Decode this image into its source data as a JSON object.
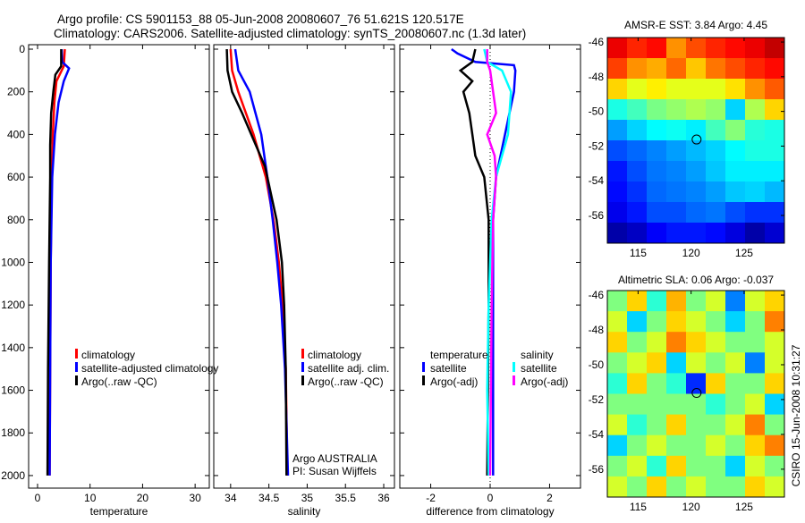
{
  "header": {
    "title_line1": "Argo profile: CS 5901153_88 05-Jun-2008 20080607_76 51.621S 120.517E",
    "title_line2": "Climatology: CARS2006. Satellite-adjusted climatology: synTS_20080607.nc (1.3d later)"
  },
  "side_label": "CSIRO 15-Jun-2008 10:31:27",
  "colors": {
    "climatology": "#ff0000",
    "satellite": "#0000ff",
    "argo": "#000000",
    "salinity_satellite": "#00ffff",
    "salinity_argo": "#ff00ff"
  },
  "chart_data": [
    {
      "type": "line",
      "id": "temperature",
      "xlabel": "temperature",
      "xlim": [
        -1.7,
        32.7
      ],
      "ylim": [
        2059,
        -21
      ],
      "xticks": [
        0,
        10,
        20,
        30
      ],
      "yticks": [
        0,
        200,
        400,
        600,
        800,
        1000,
        1200,
        1400,
        1600,
        1800,
        2000
      ],
      "legend": [
        "climatology",
        "satellite-adjusted climatology",
        "Argo(..raw -QC)"
      ],
      "series": [
        {
          "name": "climatology",
          "color": "#ff0000",
          "depth": [
            0,
            80,
            150,
            250,
            400,
            600,
            1000,
            1500,
            2000
          ],
          "values": [
            5.2,
            5.0,
            3.6,
            3.2,
            2.9,
            2.7,
            2.5,
            2.4,
            2.3
          ]
        },
        {
          "name": "satellite-adjusted climatology",
          "color": "#0000ff",
          "depth": [
            0,
            60,
            90,
            150,
            250,
            400,
            600,
            1000,
            1500,
            2000
          ],
          "values": [
            4.6,
            4.7,
            6.0,
            5.0,
            4.0,
            3.3,
            2.8,
            2.5,
            2.4,
            2.3
          ]
        },
        {
          "name": "Argo(..raw -QC)",
          "color": "#000000",
          "depth": [
            0,
            80,
            120,
            200,
            300,
            450,
            600,
            1000,
            1500,
            2000
          ],
          "values": [
            4.5,
            4.5,
            3.4,
            3.0,
            2.6,
            2.4,
            2.4,
            2.2,
            2.0,
            1.9
          ]
        }
      ]
    },
    {
      "type": "line",
      "id": "salinity",
      "xlabel": "salinity",
      "xlim": [
        33.78,
        36.14
      ],
      "ylim": [
        2059,
        -21
      ],
      "xticks": [
        34,
        34.5,
        35,
        35.5,
        36
      ],
      "legend": [
        "climatology",
        "satellite adj. clim.",
        "Argo(..raw -QC)"
      ],
      "annotations": [
        "Argo AUSTRALIA",
        "PI: Susan Wijffels"
      ],
      "series": [
        {
          "name": "climatology",
          "color": "#ff0000",
          "depth": [
            0,
            100,
            200,
            400,
            600,
            800,
            1000,
            1200,
            1500,
            2000
          ],
          "values": [
            34.0,
            34.02,
            34.1,
            34.3,
            34.46,
            34.56,
            34.63,
            34.68,
            34.72,
            34.74
          ]
        },
        {
          "name": "satellite adj. clim.",
          "color": "#0000ff",
          "depth": [
            0,
            100,
            200,
            400,
            600,
            800,
            1000,
            1200,
            1500,
            2000
          ],
          "values": [
            34.06,
            34.1,
            34.25,
            34.4,
            34.48,
            34.55,
            34.61,
            34.66,
            34.71,
            34.75
          ]
        },
        {
          "name": "Argo(..raw -QC)",
          "color": "#000000",
          "depth": [
            0,
            100,
            200,
            300,
            400,
            550,
            800,
            1000,
            1200,
            1500,
            2000
          ],
          "values": [
            33.95,
            33.96,
            34.02,
            34.15,
            34.27,
            34.45,
            34.6,
            34.67,
            34.7,
            34.72,
            34.73
          ]
        }
      ]
    },
    {
      "type": "line",
      "id": "difference",
      "xlabel": "difference from climatology",
      "xlim": [
        -3.04,
        3.04
      ],
      "ylim": [
        2059,
        -21
      ],
      "xticks": [
        -2,
        0,
        2
      ],
      "legend_headers": [
        "temperature",
        "salinity"
      ],
      "legend": [
        "satellite",
        "Argo(-adj)",
        "satellite",
        "Argo(-adj)"
      ],
      "series": [
        {
          "name": "temperature satellite",
          "color": "#0000ff",
          "depth": [
            0,
            20,
            60,
            75,
            100,
            200,
            400,
            600,
            800,
            1200,
            2000
          ],
          "values": [
            -1.3,
            -1.1,
            -0.5,
            0.8,
            0.85,
            0.8,
            0.5,
            0.2,
            0.1,
            0.1,
            0.1
          ]
        },
        {
          "name": "temperature Argo(-adj)",
          "color": "#000000",
          "depth": [
            0,
            60,
            100,
            150,
            200,
            300,
            400,
            500,
            600,
            800,
            1200,
            2000
          ],
          "values": [
            -0.5,
            -0.6,
            -1.0,
            -0.6,
            -0.9,
            -0.7,
            -0.6,
            -0.5,
            -0.2,
            -0.05,
            -0.05,
            -0.1
          ]
        },
        {
          "name": "salinity satellite",
          "color": "#00ffff",
          "depth": [
            0,
            60,
            100,
            200,
            400,
            600,
            800,
            1200,
            1600,
            2000
          ],
          "values": [
            -0.2,
            -0.1,
            0.4,
            0.7,
            0.6,
            0.2,
            0.05,
            -0.05,
            -0.1,
            -0.05
          ]
        },
        {
          "name": "salinity Argo(-adj)",
          "color": "#ff00ff",
          "depth": [
            0,
            60,
            100,
            200,
            300,
            400,
            500,
            600,
            800,
            1200,
            2000
          ],
          "values": [
            -0.1,
            -0.1,
            0.0,
            0.1,
            0.2,
            -0.1,
            0.15,
            0.2,
            0.1,
            0.05,
            0.0
          ]
        }
      ]
    },
    {
      "type": "heatmap",
      "id": "sst_map",
      "title": "AMSR-E SST: 3.84 Argo: 4.45",
      "xlim": [
        112.1,
        128.8
      ],
      "ylim": [
        -57.6,
        -45.74
      ],
      "xticks": [
        115,
        120,
        125
      ],
      "yticks": [
        -46,
        -48,
        -50,
        -52,
        -54,
        -56
      ],
      "clim": [
        1.5,
        9
      ],
      "marker": {
        "lon": 120.517,
        "lat": -51.621
      },
      "grid": [
        [
          8.2,
          7.8,
          8.0,
          7.0,
          7.5,
          7.8,
          8.0,
          8.2,
          8.5
        ],
        [
          7.6,
          7.0,
          6.8,
          7.3,
          6.6,
          7.2,
          7.5,
          7.8,
          8.0
        ],
        [
          6.5,
          6.0,
          6.3,
          6.0,
          6.0,
          6.0,
          6.4,
          7.0,
          7.4
        ],
        [
          4.5,
          4.8,
          5.2,
          5.4,
          5.6,
          5.4,
          4.0,
          5.6,
          6.5
        ],
        [
          3.6,
          4.0,
          4.3,
          4.4,
          4.2,
          4.8,
          5.3,
          4.6,
          4.5
        ],
        [
          3.0,
          3.2,
          3.4,
          3.6,
          3.8,
          4.0,
          4.3,
          4.5,
          4.5
        ],
        [
          2.6,
          3.0,
          3.3,
          3.4,
          3.6,
          3.9,
          4.2,
          4.2,
          4.2
        ],
        [
          2.5,
          2.8,
          3.2,
          3.3,
          3.4,
          3.6,
          3.9,
          4.0,
          3.8
        ],
        [
          2.3,
          2.6,
          3.0,
          3.0,
          3.2,
          3.3,
          3.0,
          2.8,
          2.8
        ],
        [
          1.8,
          2.0,
          2.4,
          2.6,
          2.6,
          2.5,
          2.2,
          1.8,
          2.1
        ]
      ]
    },
    {
      "type": "heatmap",
      "id": "sla_map",
      "title": "Altimetric SLA: 0.06 Argo: -0.037",
      "xlim": [
        112.1,
        128.8
      ],
      "ylim": [
        -57.6,
        -45.74
      ],
      "xticks": [
        115,
        120,
        125
      ],
      "yticks": [
        -46,
        -48,
        -50,
        -52,
        -54,
        -56
      ],
      "clim": [
        -0.3,
        0.3
      ],
      "marker": {
        "lon": 120.517,
        "lat": -51.621
      },
      "grid": [
        [
          0.0,
          0.1,
          -0.05,
          0.12,
          0.0,
          0.05,
          -0.15,
          0.05,
          0.1
        ],
        [
          0.05,
          -0.1,
          0.0,
          0.1,
          0.05,
          0.0,
          -0.1,
          0.0,
          0.15
        ],
        [
          0.1,
          0.0,
          0.05,
          0.15,
          0.1,
          0.05,
          0.0,
          0.0,
          0.05
        ],
        [
          0.0,
          0.05,
          0.1,
          -0.1,
          0.05,
          0.0,
          0.05,
          -0.15,
          0.05
        ],
        [
          -0.05,
          0.1,
          0.0,
          -0.05,
          -0.2,
          0.1,
          0.0,
          0.0,
          0.1
        ],
        [
          0.0,
          0.0,
          0.0,
          0.0,
          0.0,
          -0.05,
          0.0,
          0.05,
          -0.1
        ],
        [
          0.05,
          -0.05,
          0.0,
          0.1,
          0.0,
          0.0,
          0.05,
          0.15,
          0.0
        ],
        [
          -0.1,
          0.0,
          0.05,
          0.0,
          0.0,
          0.05,
          0.0,
          0.1,
          0.15
        ],
        [
          0.0,
          0.05,
          -0.05,
          0.1,
          0.0,
          0.0,
          -0.1,
          0.05,
          0.0
        ],
        [
          0.05,
          0.0,
          0.1,
          0.0,
          0.05,
          0.0,
          0.0,
          0.1,
          0.05
        ]
      ]
    }
  ]
}
